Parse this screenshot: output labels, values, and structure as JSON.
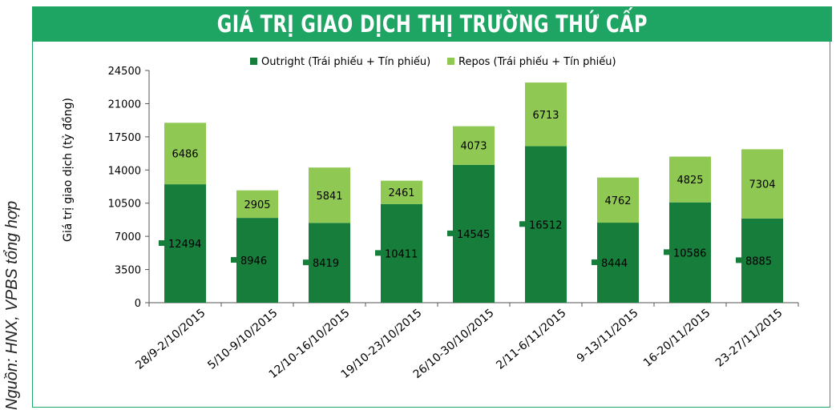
{
  "title": "GIÁ TRỊ GIAO DỊCH THỊ TRƯỜNG THỨ CẤP",
  "source_note": "Nguồn: HNX, VPBS tổng hợp",
  "colors": {
    "outright": "#167d3b",
    "repos": "#8fc953",
    "header": "#1ea463"
  },
  "chart_data": {
    "type": "bar",
    "stacked": true,
    "title": "GIÁ TRỊ GIAO DỊCH THỊ TRƯỜNG THỨ CẤP",
    "ylabel": "Giá trị giao dịch (tỷ đồng)",
    "xlabel": "",
    "ylim": [
      0,
      24500
    ],
    "yticks": [
      0,
      3500,
      7000,
      10500,
      14000,
      17500,
      21000,
      24500
    ],
    "legend_position": "top",
    "grid": false,
    "categories": [
      "28/9-2/10/2015",
      "5/10-9/10/2015",
      "12/10-16/10/2015",
      "19/10-23/10/2015",
      "26/10-30/10/2015",
      "2/11-6/11/2015",
      "9-13/11/2015",
      "16-20/11/2015",
      "23-27/11/2015"
    ],
    "series": [
      {
        "name": "Outright (Trái phiếu + Tín phiếu)",
        "values": [
          12494,
          8946,
          8419,
          10411,
          14545,
          16512,
          8444,
          10586,
          8885
        ]
      },
      {
        "name": "Repos (Trái phiếu + Tín phiếu)",
        "values": [
          6486,
          2905,
          5841,
          2461,
          4073,
          6713,
          4762,
          4825,
          7304
        ]
      }
    ]
  }
}
